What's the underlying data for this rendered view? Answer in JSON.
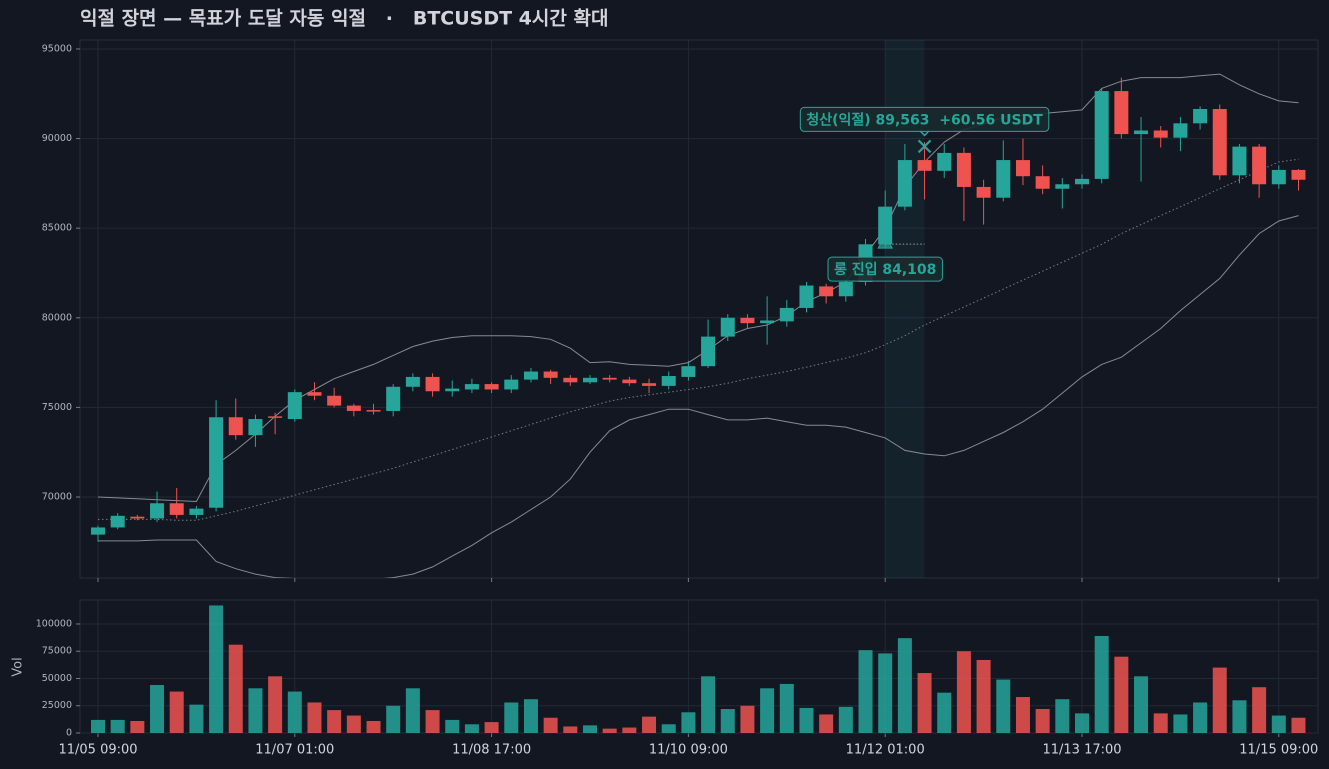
{
  "chart_data": [
    {
      "type": "candlestick",
      "title": "익절 장면 — 목표가 도달 자동 익절   ·   BTCUSDT 4시간 확대",
      "categories": [
        "11/05 09:00",
        null,
        null,
        null,
        null,
        null,
        null,
        null,
        null,
        null,
        "11/07 01:00",
        null,
        null,
        null,
        null,
        null,
        null,
        null,
        null,
        null,
        "11/08 17:00",
        null,
        null,
        null,
        null,
        null,
        null,
        null,
        null,
        null,
        "11/10 09:00",
        null,
        null,
        null,
        null,
        null,
        null,
        null,
        null,
        null,
        "11/12 01:00",
        null,
        null,
        null,
        null,
        null,
        null,
        null,
        null,
        null,
        "11/13 17:00",
        null,
        null,
        null,
        null,
        null,
        null,
        null,
        null,
        null,
        "11/15 09:00",
        null
      ],
      "open": [
        67900,
        68300,
        68900,
        68800,
        69650,
        69000,
        69400,
        74450,
        73450,
        74500,
        74350,
        75850,
        75650,
        75100,
        74850,
        74800,
        76150,
        76700,
        75900,
        76000,
        76300,
        76000,
        76550,
        77000,
        76650,
        76400,
        76650,
        76550,
        76350,
        76200,
        76700,
        77300,
        78950,
        80000,
        79700,
        79800,
        80550,
        81750,
        81200,
        82000,
        84100,
        86200,
        88800,
        88200,
        89200,
        87300,
        86700,
        88800,
        87900,
        87200,
        87450,
        87750,
        92650,
        90250,
        90450,
        90050,
        90850,
        91650,
        87950,
        89550,
        87450,
        88250
      ],
      "high": [
        68400,
        69100,
        69000,
        70300,
        70500,
        69500,
        75400,
        75500,
        74600,
        74700,
        76000,
        76400,
        76100,
        75200,
        75200,
        76300,
        76900,
        76900,
        76500,
        76600,
        76400,
        76800,
        77200,
        77100,
        76800,
        76800,
        76800,
        76700,
        76600,
        77000,
        77600,
        79900,
        80200,
        80200,
        81200,
        81000,
        82000,
        81900,
        82400,
        84400,
        87100,
        89700,
        89800,
        89700,
        89500,
        87700,
        89900,
        90000,
        88500,
        87800,
        88000,
        92800,
        93400,
        91200,
        90700,
        91200,
        91800,
        91900,
        89700,
        89700,
        88500,
        88300
      ],
      "low": [
        67500,
        68200,
        68700,
        68600,
        68800,
        68800,
        69200,
        73200,
        72800,
        73500,
        74200,
        75400,
        75000,
        74500,
        74600,
        74500,
        75900,
        75600,
        75600,
        75800,
        75800,
        75800,
        76400,
        76300,
        76200,
        76300,
        76400,
        76200,
        75800,
        76000,
        76500,
        77200,
        78700,
        79400,
        78500,
        79500,
        80300,
        80800,
        80900,
        81800,
        83900,
        86000,
        86600,
        87800,
        85400,
        85200,
        86500,
        87400,
        86900,
        86100,
        87200,
        87500,
        90000,
        87600,
        89500,
        89300,
        90500,
        87700,
        87500,
        86700,
        87200,
        87100
      ],
      "close": [
        68300,
        68950,
        68800,
        69650,
        69000,
        69350,
        74450,
        73450,
        74350,
        74450,
        75850,
        75650,
        75100,
        74800,
        74800,
        76150,
        76700,
        75900,
        76050,
        76300,
        76000,
        76550,
        77000,
        76650,
        76400,
        76650,
        76550,
        76350,
        76200,
        76750,
        77300,
        78950,
        80000,
        79700,
        79850,
        80550,
        81800,
        81200,
        82000,
        84100,
        86200,
        88800,
        88200,
        89200,
        87300,
        86700,
        88800,
        87900,
        87200,
        87450,
        87750,
        92650,
        90250,
        90450,
        90050,
        90850,
        91650,
        87950,
        89550,
        87450,
        88250,
        87700
      ],
      "up_color": "#26a69a",
      "down_color": "#ef5350",
      "bands": [
        {
          "color": "#9aa0a6",
          "dash": false,
          "values": [
            70000,
            69950,
            69900,
            69850,
            69800,
            69750,
            71800,
            72600,
            73500,
            74500,
            75400,
            76000,
            76600,
            77000,
            77400,
            77900,
            78400,
            78700,
            78900,
            79000,
            79000,
            79000,
            78950,
            78800,
            78300,
            77500,
            77550,
            77400,
            77350,
            77300,
            77500,
            78200,
            79000,
            79400,
            79600,
            80100,
            80900,
            81400,
            82000,
            83500,
            85000,
            87300,
            88700,
            89800,
            90500,
            90800,
            91200,
            91300,
            91400,
            91500,
            91600,
            92800,
            93200,
            93400,
            93400,
            93400,
            93500,
            93600,
            93000,
            92500,
            92100,
            92000
          ]
        },
        {
          "color": "#9aa0a6",
          "dash": true,
          "values": [
            68750,
            68750,
            68750,
            68750,
            68700,
            68700,
            68950,
            69200,
            69500,
            69800,
            70100,
            70400,
            70700,
            71000,
            71300,
            71600,
            71950,
            72300,
            72650,
            73000,
            73350,
            73700,
            74050,
            74400,
            74750,
            75050,
            75350,
            75550,
            75700,
            75850,
            76000,
            76150,
            76350,
            76600,
            76800,
            77000,
            77250,
            77500,
            77750,
            78050,
            78500,
            79000,
            79600,
            80100,
            80600,
            81100,
            81600,
            82100,
            82600,
            83100,
            83600,
            84100,
            84700,
            85200,
            85700,
            86200,
            86700,
            87200,
            87700,
            88200,
            88700,
            88850
          ]
        },
        {
          "color": "#9aa0a6",
          "dash": false,
          "values": [
            67550,
            67550,
            67550,
            67600,
            67600,
            67600,
            66400,
            66000,
            65700,
            65500,
            65450,
            65400,
            65400,
            65400,
            65400,
            65500,
            65700,
            66100,
            66700,
            67300,
            68000,
            68600,
            69300,
            70000,
            71000,
            72500,
            73700,
            74300,
            74600,
            74900,
            74900,
            74600,
            74300,
            74300,
            74400,
            74200,
            74000,
            74000,
            73900,
            73600,
            73300,
            72600,
            72400,
            72300,
            72600,
            73100,
            73600,
            74200,
            74900,
            75800,
            76700,
            77400,
            77800,
            78600,
            79400,
            80400,
            81300,
            82200,
            83500,
            84700,
            85400,
            85700
          ]
        }
      ],
      "highlight": [
        40,
        42
      ],
      "annotations": [
        {
          "kind": "entry",
          "index": 40,
          "value": 84108,
          "label": "롱 진입 84,108"
        },
        {
          "kind": "exit",
          "index": 42,
          "value": 89563,
          "label": "청산(익절) 89,563  +60.56 USDT"
        }
      ],
      "ylim": [
        65480,
        95500
      ],
      "yticks": [
        70000,
        75000,
        80000,
        85000,
        90000,
        95000
      ],
      "grid": true
    },
    {
      "type": "bar",
      "ylabel": "Vol",
      "values": [
        12000,
        12000,
        11000,
        44000,
        38000,
        26000,
        117000,
        81000,
        41000,
        52000,
        38000,
        28000,
        21000,
        16000,
        11000,
        25000,
        41000,
        21000,
        12000,
        8000,
        10000,
        28000,
        31000,
        14000,
        6000,
        7000,
        4000,
        5000,
        15000,
        8000,
        19000,
        52000,
        22000,
        25000,
        41000,
        45000,
        23000,
        17000,
        24000,
        76000,
        73000,
        87000,
        55000,
        37000,
        75000,
        67000,
        49000,
        33000,
        22000,
        31000,
        18000,
        89000,
        70000,
        52000,
        18000,
        17000,
        28000,
        60000,
        30000,
        42000,
        16000,
        14000
      ],
      "ylim": [
        0,
        122000
      ],
      "yticks": [
        0,
        25000,
        50000,
        75000,
        100000
      ],
      "grid": true
    }
  ]
}
